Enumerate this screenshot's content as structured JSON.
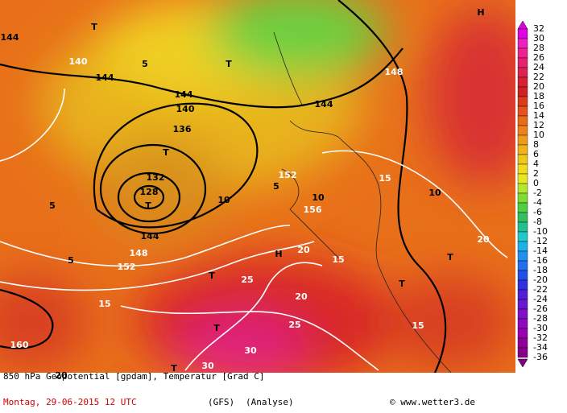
{
  "map": {
    "colorbar": {
      "labels": [
        "32",
        "30",
        "28",
        "26",
        "24",
        "22",
        "20",
        "18",
        "16",
        "14",
        "12",
        "10",
        "8",
        "6",
        "4",
        "2",
        "0",
        "-2",
        "-4",
        "-6",
        "-8",
        "-10",
        "-12",
        "-14",
        "-16",
        "-18",
        "-20",
        "-22",
        "-24",
        "-26",
        "-28",
        "-30",
        "-32",
        "-34",
        "-36"
      ]
    },
    "labels": [
      "144",
      "144",
      "144",
      "144",
      "144",
      "140",
      "140",
      "136",
      "132",
      "128",
      "T",
      "T",
      "T",
      "T",
      "H",
      "H",
      "T",
      "T",
      "T",
      "T",
      "T",
      "5",
      "5",
      "5",
      "5",
      "10",
      "10",
      "10",
      "15",
      "15",
      "15",
      "15",
      "20",
      "20",
      "20",
      "25",
      "25",
      "30",
      "30",
      "152",
      "152",
      "156",
      "148",
      "148",
      "160",
      "20"
    ],
    "footer": {
      "title": "850 hPa Geopotential [gpdam], Temperatur [Grad C]",
      "date": "Montag, 29-06-2015  12 UTC",
      "model": "(GFS)",
      "analysis": "(Analyse)",
      "credit": "© www.wetter3.de"
    }
  }
}
